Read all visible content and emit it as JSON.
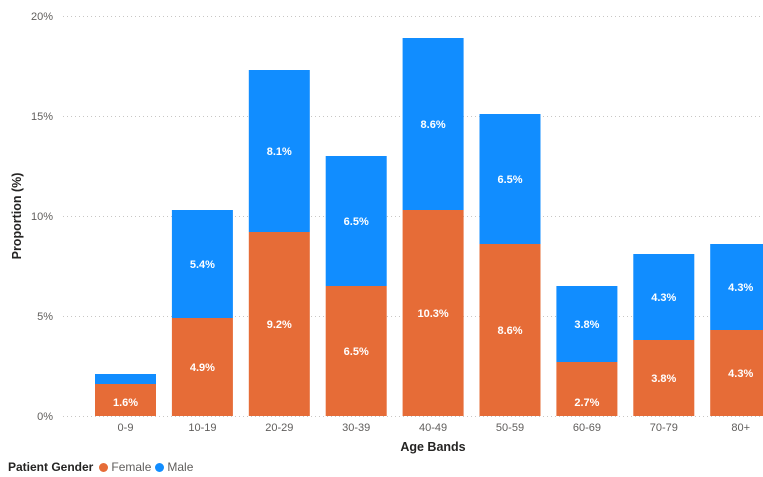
{
  "chart_data": {
    "type": "bar",
    "stacked": true,
    "categories": [
      "0-9",
      "10-19",
      "20-29",
      "30-39",
      "40-49",
      "50-59",
      "60-69",
      "70-79",
      "80+"
    ],
    "series": [
      {
        "name": "Female",
        "color": "#E66C37",
        "values": [
          1.6,
          4.9,
          9.2,
          6.5,
          10.3,
          8.6,
          2.7,
          3.8,
          4.3
        ],
        "labels": [
          "1.6%",
          "4.9%",
          "9.2%",
          "6.5%",
          "10.3%",
          "8.6%",
          "2.7%",
          "3.8%",
          "4.3%"
        ]
      },
      {
        "name": "Male",
        "color": "#118DFF",
        "values": [
          0.5,
          5.4,
          8.1,
          6.5,
          8.6,
          6.5,
          3.8,
          4.3,
          4.3
        ],
        "labels": [
          "",
          "5.4%",
          "8.1%",
          "6.5%",
          "8.6%",
          "6.5%",
          "3.8%",
          "4.3%",
          "4.3%"
        ]
      }
    ],
    "ylim": [
      0,
      20
    ],
    "yticks": [
      0,
      5,
      10,
      15,
      20
    ],
    "ytick_labels": [
      "0%",
      "5%",
      "10%",
      "15%",
      "20%"
    ],
    "xlabel": "Age Bands",
    "ylabel": "Proportion (%)",
    "grid": true,
    "legend": {
      "title": "Patient Gender",
      "position": "bottom-left"
    }
  }
}
